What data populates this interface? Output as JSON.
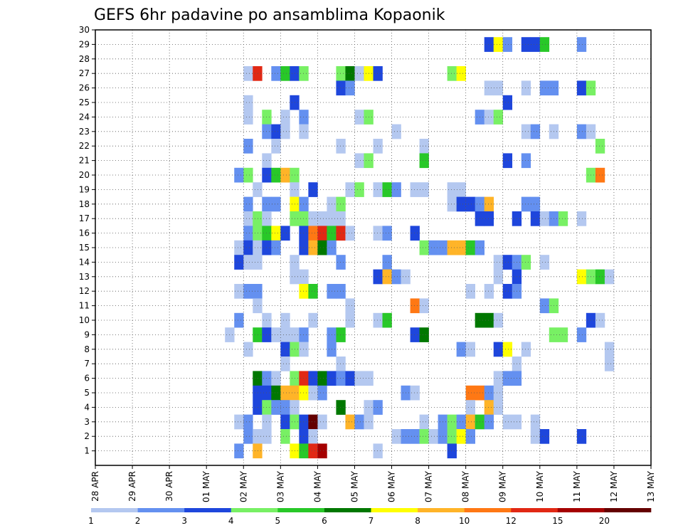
{
  "chart_data": {
    "type": "heatmap",
    "title": "GEFS 6hr padavine po ansamblima Kopaonik",
    "xlabel": "",
    "ylabel": "",
    "x_ticks": [
      "28 APR",
      "29 APR",
      "30 APR",
      "01 MAY",
      "02 MAY",
      "03 MAY",
      "04 MAY",
      "05 MAY",
      "06 MAY",
      "07 MAY",
      "08 MAY",
      "09 MAY",
      "10 MAY",
      "11 MAY",
      "12 MAY",
      "13 MAY"
    ],
    "x_range_days": [
      0,
      15
    ],
    "y_ticks": [
      1,
      2,
      3,
      4,
      5,
      6,
      7,
      8,
      9,
      10,
      11,
      12,
      13,
      14,
      15,
      16,
      17,
      18,
      19,
      20,
      21,
      22,
      23,
      24,
      25,
      26,
      27,
      28,
      29,
      30
    ],
    "y_range": [
      0,
      30
    ],
    "grid": true,
    "colorbar": {
      "labels": [
        "1",
        "2",
        "3",
        "4",
        "5",
        "6",
        "7",
        "8",
        "10",
        "12",
        "15",
        "20"
      ],
      "colors": [
        "#b4c8f0",
        "#6490f0",
        "#1e46dc",
        "#78f064",
        "#28c828",
        "#007800",
        "#ffff00",
        "#ffb428",
        "#ff7814",
        "#e12814",
        "#a50000",
        "#640000"
      ]
    },
    "cells_note": "each cell: [time index in 6-hour steps from 28 APR 00Z, ensemble member, color class 1..12]",
    "cells": [
      [
        42,
        29,
        3
      ],
      [
        43,
        29,
        7
      ],
      [
        44,
        29,
        2
      ],
      [
        46,
        29,
        3
      ],
      [
        47,
        29,
        3
      ],
      [
        48,
        29,
        5
      ],
      [
        52,
        29,
        2
      ],
      [
        16,
        27,
        1
      ],
      [
        17,
        27,
        10
      ],
      [
        19,
        27,
        2
      ],
      [
        20,
        27,
        5
      ],
      [
        21,
        27,
        3
      ],
      [
        22,
        27,
        4
      ],
      [
        26,
        27,
        4
      ],
      [
        27,
        27,
        6
      ],
      [
        28,
        27,
        1
      ],
      [
        29,
        27,
        7
      ],
      [
        30,
        27,
        3
      ],
      [
        38,
        27,
        4
      ],
      [
        39,
        27,
        7
      ],
      [
        26,
        26,
        3
      ],
      [
        27,
        26,
        2
      ],
      [
        42,
        26,
        1
      ],
      [
        43,
        26,
        1
      ],
      [
        46,
        26,
        1
      ],
      [
        48,
        26,
        2
      ],
      [
        49,
        26,
        2
      ],
      [
        52,
        26,
        3
      ],
      [
        53,
        26,
        4
      ],
      [
        16,
        25,
        1
      ],
      [
        21,
        25,
        3
      ],
      [
        44,
        25,
        3
      ],
      [
        16,
        24,
        1
      ],
      [
        18,
        24,
        4
      ],
      [
        20,
        24,
        1
      ],
      [
        22,
        24,
        2
      ],
      [
        28,
        24,
        1
      ],
      [
        29,
        24,
        4
      ],
      [
        41,
        24,
        2
      ],
      [
        42,
        24,
        1
      ],
      [
        43,
        24,
        4
      ],
      [
        18,
        23,
        2
      ],
      [
        19,
        23,
        3
      ],
      [
        20,
        23,
        1
      ],
      [
        22,
        23,
        1
      ],
      [
        32,
        23,
        1
      ],
      [
        46,
        23,
        1
      ],
      [
        47,
        23,
        2
      ],
      [
        49,
        23,
        1
      ],
      [
        52,
        23,
        2
      ],
      [
        53,
        23,
        1
      ],
      [
        16,
        22,
        2
      ],
      [
        19,
        22,
        1
      ],
      [
        26,
        22,
        1
      ],
      [
        30,
        22,
        1
      ],
      [
        35,
        22,
        1
      ],
      [
        54,
        22,
        4
      ],
      [
        18,
        21,
        1
      ],
      [
        28,
        21,
        1
      ],
      [
        29,
        21,
        4
      ],
      [
        35,
        21,
        5
      ],
      [
        44,
        21,
        3
      ],
      [
        46,
        21,
        2
      ],
      [
        15,
        20,
        2
      ],
      [
        16,
        20,
        4
      ],
      [
        18,
        20,
        3
      ],
      [
        19,
        20,
        5
      ],
      [
        20,
        20,
        8
      ],
      [
        21,
        20,
        4
      ],
      [
        53,
        20,
        4
      ],
      [
        54,
        20,
        9
      ],
      [
        17,
        19,
        1
      ],
      [
        21,
        19,
        1
      ],
      [
        23,
        19,
        3
      ],
      [
        27,
        19,
        1
      ],
      [
        28,
        19,
        4
      ],
      [
        30,
        19,
        1
      ],
      [
        31,
        19,
        5
      ],
      [
        32,
        19,
        2
      ],
      [
        34,
        19,
        1
      ],
      [
        35,
        19,
        1
      ],
      [
        38,
        19,
        1
      ],
      [
        39,
        19,
        1
      ],
      [
        16,
        18,
        2
      ],
      [
        18,
        18,
        2
      ],
      [
        19,
        18,
        2
      ],
      [
        21,
        18,
        7
      ],
      [
        22,
        18,
        2
      ],
      [
        25,
        18,
        1
      ],
      [
        26,
        18,
        4
      ],
      [
        38,
        18,
        1
      ],
      [
        39,
        18,
        3
      ],
      [
        40,
        18,
        3
      ],
      [
        41,
        18,
        2
      ],
      [
        42,
        18,
        8
      ],
      [
        46,
        18,
        2
      ],
      [
        47,
        18,
        2
      ],
      [
        16,
        17,
        1
      ],
      [
        17,
        17,
        4
      ],
      [
        18,
        17,
        1
      ],
      [
        21,
        17,
        4
      ],
      [
        22,
        17,
        4
      ],
      [
        23,
        17,
        1
      ],
      [
        24,
        17,
        1
      ],
      [
        25,
        17,
        1
      ],
      [
        26,
        17,
        1
      ],
      [
        41,
        17,
        3
      ],
      [
        42,
        17,
        3
      ],
      [
        45,
        17,
        3
      ],
      [
        47,
        17,
        3
      ],
      [
        48,
        17,
        1
      ],
      [
        49,
        17,
        2
      ],
      [
        50,
        17,
        4
      ],
      [
        52,
        17,
        1
      ],
      [
        16,
        16,
        2
      ],
      [
        17,
        16,
        4
      ],
      [
        18,
        16,
        5
      ],
      [
        19,
        16,
        7
      ],
      [
        20,
        16,
        3
      ],
      [
        22,
        16,
        3
      ],
      [
        23,
        16,
        9
      ],
      [
        24,
        16,
        10
      ],
      [
        25,
        16,
        5
      ],
      [
        26,
        16,
        10
      ],
      [
        27,
        16,
        1
      ],
      [
        30,
        16,
        1
      ],
      [
        31,
        16,
        2
      ],
      [
        34,
        16,
        3
      ],
      [
        15,
        15,
        1
      ],
      [
        16,
        15,
        3
      ],
      [
        17,
        15,
        1
      ],
      [
        18,
        15,
        3
      ],
      [
        19,
        15,
        2
      ],
      [
        22,
        15,
        3
      ],
      [
        23,
        15,
        8
      ],
      [
        24,
        15,
        6
      ],
      [
        25,
        15,
        2
      ],
      [
        35,
        15,
        4
      ],
      [
        36,
        15,
        2
      ],
      [
        37,
        15,
        2
      ],
      [
        38,
        15,
        8
      ],
      [
        39,
        15,
        8
      ],
      [
        40,
        15,
        5
      ],
      [
        41,
        15,
        2
      ],
      [
        15,
        14,
        3
      ],
      [
        16,
        14,
        1
      ],
      [
        17,
        14,
        1
      ],
      [
        21,
        14,
        1
      ],
      [
        26,
        14,
        2
      ],
      [
        31,
        14,
        2
      ],
      [
        43,
        14,
        1
      ],
      [
        44,
        14,
        3
      ],
      [
        45,
        14,
        2
      ],
      [
        46,
        14,
        4
      ],
      [
        48,
        14,
        1
      ],
      [
        21,
        13,
        1
      ],
      [
        22,
        13,
        1
      ],
      [
        30,
        13,
        3
      ],
      [
        31,
        13,
        8
      ],
      [
        32,
        13,
        2
      ],
      [
        33,
        13,
        1
      ],
      [
        43,
        13,
        1
      ],
      [
        45,
        13,
        3
      ],
      [
        52,
        13,
        7
      ],
      [
        53,
        13,
        4
      ],
      [
        54,
        13,
        5
      ],
      [
        55,
        13,
        1
      ],
      [
        15,
        12,
        1
      ],
      [
        16,
        12,
        2
      ],
      [
        17,
        12,
        2
      ],
      [
        22,
        12,
        7
      ],
      [
        23,
        12,
        5
      ],
      [
        25,
        12,
        2
      ],
      [
        26,
        12,
        2
      ],
      [
        40,
        12,
        1
      ],
      [
        42,
        12,
        1
      ],
      [
        44,
        12,
        3
      ],
      [
        45,
        12,
        2
      ],
      [
        17,
        11,
        1
      ],
      [
        27,
        11,
        1
      ],
      [
        34,
        11,
        9
      ],
      [
        35,
        11,
        1
      ],
      [
        48,
        11,
        2
      ],
      [
        49,
        11,
        4
      ],
      [
        15,
        10,
        2
      ],
      [
        18,
        10,
        1
      ],
      [
        20,
        10,
        1
      ],
      [
        23,
        10,
        1
      ],
      [
        27,
        10,
        1
      ],
      [
        30,
        10,
        1
      ],
      [
        31,
        10,
        5
      ],
      [
        41,
        10,
        6
      ],
      [
        42,
        10,
        6
      ],
      [
        43,
        10,
        1
      ],
      [
        53,
        10,
        3
      ],
      [
        54,
        10,
        1
      ],
      [
        14,
        9,
        1
      ],
      [
        17,
        9,
        5
      ],
      [
        18,
        9,
        3
      ],
      [
        19,
        9,
        1
      ],
      [
        20,
        9,
        1
      ],
      [
        21,
        9,
        1
      ],
      [
        22,
        9,
        2
      ],
      [
        25,
        9,
        2
      ],
      [
        26,
        9,
        5
      ],
      [
        34,
        9,
        3
      ],
      [
        35,
        9,
        6
      ],
      [
        49,
        9,
        4
      ],
      [
        50,
        9,
        4
      ],
      [
        52,
        9,
        2
      ],
      [
        16,
        8,
        1
      ],
      [
        20,
        8,
        3
      ],
      [
        21,
        8,
        4
      ],
      [
        22,
        8,
        1
      ],
      [
        25,
        8,
        2
      ],
      [
        39,
        8,
        2
      ],
      [
        40,
        8,
        1
      ],
      [
        43,
        8,
        3
      ],
      [
        44,
        8,
        7
      ],
      [
        46,
        8,
        1
      ],
      [
        55,
        8,
        1
      ],
      [
        20,
        7,
        1
      ],
      [
        26,
        7,
        1
      ],
      [
        45,
        7,
        1
      ],
      [
        55,
        7,
        1
      ],
      [
        17,
        6,
        6
      ],
      [
        18,
        6,
        2
      ],
      [
        19,
        6,
        1
      ],
      [
        21,
        6,
        4
      ],
      [
        22,
        6,
        10
      ],
      [
        23,
        6,
        3
      ],
      [
        24,
        6,
        6
      ],
      [
        25,
        6,
        3
      ],
      [
        26,
        6,
        2
      ],
      [
        27,
        6,
        3
      ],
      [
        28,
        6,
        1
      ],
      [
        29,
        6,
        1
      ],
      [
        43,
        6,
        1
      ],
      [
        44,
        6,
        2
      ],
      [
        45,
        6,
        2
      ],
      [
        17,
        5,
        3
      ],
      [
        18,
        5,
        3
      ],
      [
        19,
        5,
        6
      ],
      [
        20,
        5,
        8
      ],
      [
        21,
        5,
        8
      ],
      [
        22,
        5,
        7
      ],
      [
        23,
        5,
        1
      ],
      [
        24,
        5,
        2
      ],
      [
        33,
        5,
        2
      ],
      [
        34,
        5,
        1
      ],
      [
        40,
        5,
        9
      ],
      [
        41,
        5,
        9
      ],
      [
        42,
        5,
        2
      ],
      [
        43,
        5,
        1
      ],
      [
        17,
        4,
        3
      ],
      [
        18,
        4,
        4
      ],
      [
        19,
        4,
        2
      ],
      [
        20,
        4,
        2
      ],
      [
        21,
        4,
        1
      ],
      [
        26,
        4,
        6
      ],
      [
        29,
        4,
        1
      ],
      [
        30,
        4,
        2
      ],
      [
        40,
        4,
        1
      ],
      [
        42,
        4,
        8
      ],
      [
        43,
        4,
        1
      ],
      [
        15,
        3,
        1
      ],
      [
        16,
        3,
        2
      ],
      [
        18,
        3,
        1
      ],
      [
        20,
        3,
        3
      ],
      [
        21,
        3,
        4
      ],
      [
        22,
        3,
        3
      ],
      [
        23,
        3,
        12
      ],
      [
        24,
        3,
        1
      ],
      [
        27,
        3,
        8
      ],
      [
        28,
        3,
        2
      ],
      [
        29,
        3,
        1
      ],
      [
        35,
        3,
        1
      ],
      [
        37,
        3,
        2
      ],
      [
        38,
        3,
        4
      ],
      [
        39,
        3,
        2
      ],
      [
        40,
        3,
        8
      ],
      [
        41,
        3,
        5
      ],
      [
        42,
        3,
        2
      ],
      [
        44,
        3,
        1
      ],
      [
        45,
        3,
        1
      ],
      [
        47,
        3,
        1
      ],
      [
        16,
        2,
        2
      ],
      [
        17,
        2,
        1
      ],
      [
        18,
        2,
        1
      ],
      [
        20,
        2,
        4
      ],
      [
        22,
        2,
        3
      ],
      [
        23,
        2,
        1
      ],
      [
        32,
        2,
        1
      ],
      [
        33,
        2,
        2
      ],
      [
        34,
        2,
        2
      ],
      [
        35,
        2,
        4
      ],
      [
        36,
        2,
        1
      ],
      [
        37,
        2,
        2
      ],
      [
        38,
        2,
        4
      ],
      [
        39,
        2,
        7
      ],
      [
        40,
        2,
        2
      ],
      [
        47,
        2,
        1
      ],
      [
        48,
        2,
        3
      ],
      [
        52,
        2,
        3
      ],
      [
        15,
        1,
        2
      ],
      [
        17,
        1,
        8
      ],
      [
        21,
        1,
        7
      ],
      [
        22,
        1,
        5
      ],
      [
        23,
        1,
        10
      ],
      [
        24,
        1,
        11
      ],
      [
        30,
        1,
        1
      ],
      [
        38,
        1,
        3
      ]
    ]
  }
}
